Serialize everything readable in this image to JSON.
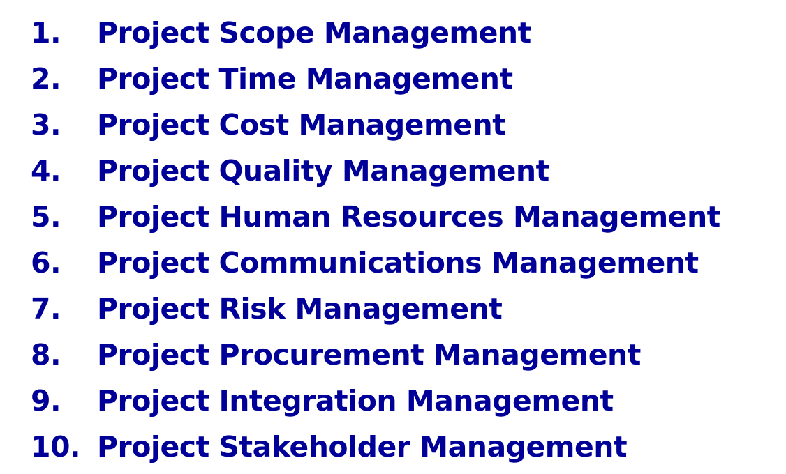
{
  "knowledge_areas": {
    "items": [
      {
        "number": "1.",
        "label": "Project Scope Management"
      },
      {
        "number": "2.",
        "label": "Project Time Management"
      },
      {
        "number": "3.",
        "label": "Project Cost Management"
      },
      {
        "number": "4.",
        "label": "Project Quality Management"
      },
      {
        "number": "5.",
        "label": "Project Human Resources Management"
      },
      {
        "number": "6.",
        "label": "Project Communications Management"
      },
      {
        "number": "7.",
        "label": "Project Risk Management"
      },
      {
        "number": "8.",
        "label": "Project Procurement Management"
      },
      {
        "number": "9.",
        "label": "Project Integration Management"
      },
      {
        "number": "10.",
        "label": "Project Stakeholder Management"
      }
    ]
  },
  "colors": {
    "text": "#000099",
    "background": "#ffffff"
  }
}
